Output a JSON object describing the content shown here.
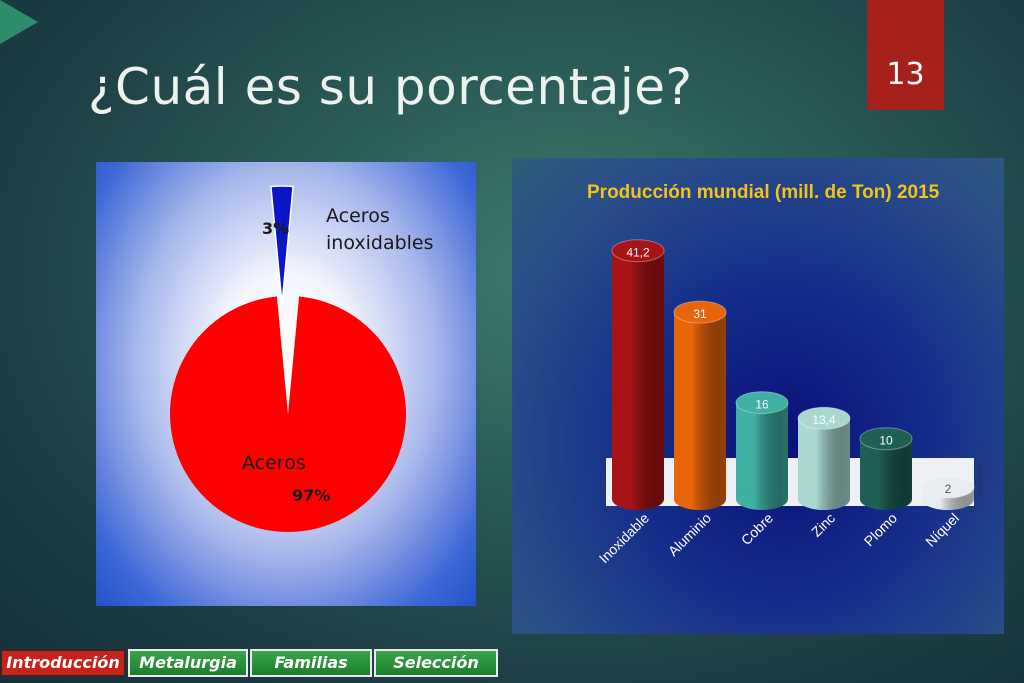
{
  "slide": {
    "title": "¿Cuál es su porcentaje?",
    "page_number": "13"
  },
  "chart_data": [
    {
      "type": "pie",
      "labels": [
        "Aceros",
        "Aceros inoxidables"
      ],
      "values": [
        97,
        3
      ],
      "value_labels": [
        "97%",
        "3%"
      ],
      "colors": [
        "#ff0000",
        "#0a17c8"
      ]
    },
    {
      "type": "bar",
      "title": "Producción mundial (mill. de Ton) 2015",
      "categories": [
        "Inoxidable",
        "Aluminio",
        "Cobre",
        "Zinc",
        "Plomo",
        "Níquel"
      ],
      "values": [
        41.2,
        31,
        16,
        13.4,
        10,
        2
      ],
      "value_labels": [
        "41,2",
        "31",
        "16",
        "13,4",
        "10",
        "2"
      ],
      "colors": [
        "#a81416",
        "#e8650a",
        "#3fb0a2",
        "#a9d8d0",
        "#1f5f56",
        "#e8ecef"
      ],
      "series_tag": "2015",
      "ylim": [
        0,
        45
      ]
    }
  ],
  "nav": {
    "items": [
      "Introducción",
      "Metalurgia",
      "Familias",
      "Selección"
    ],
    "active_index": 0
  }
}
